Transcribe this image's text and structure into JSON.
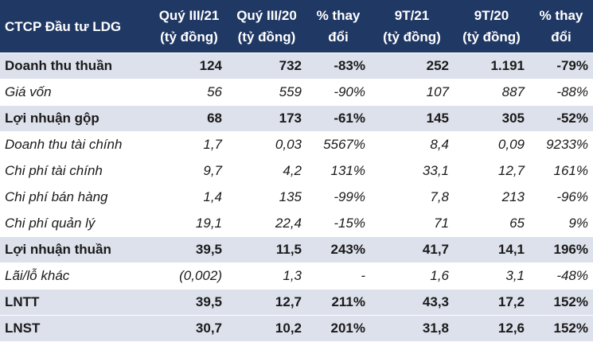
{
  "header": [
    [
      "CTCP Đầu tư LDG"
    ],
    [
      "Quý III/21",
      "(tỷ đồng)"
    ],
    [
      "Quý III/20",
      "(tỷ đồng)"
    ],
    [
      "% thay",
      "đổi"
    ],
    [
      "9T/21",
      "(tỷ đồng)"
    ],
    [
      "9T/20",
      "(tỷ đồng)"
    ],
    [
      "% thay",
      "đổi"
    ]
  ],
  "rows": [
    {
      "bold": true,
      "cells": [
        "Doanh thu thuần",
        "124",
        "732",
        "-83%",
        "252",
        "1.191",
        "-79%"
      ]
    },
    {
      "bold": false,
      "cells": [
        "Giá vốn",
        "56",
        "559",
        "-90%",
        "107",
        "887",
        "-88%"
      ]
    },
    {
      "bold": true,
      "cells": [
        "Lợi nhuận gộp",
        "68",
        "173",
        "-61%",
        "145",
        "305",
        "-52%"
      ]
    },
    {
      "bold": false,
      "cells": [
        "Doanh thu tài chính",
        "1,7",
        "0,03",
        "5567%",
        "8,4",
        "0,09",
        "9233%"
      ]
    },
    {
      "bold": false,
      "cells": [
        "Chi phí tài chính",
        "9,7",
        "4,2",
        "131%",
        "33,1",
        "12,7",
        "161%"
      ]
    },
    {
      "bold": false,
      "cells": [
        "Chi phí bán hàng",
        "1,4",
        "135",
        "-99%",
        "7,8",
        "213",
        "-96%"
      ]
    },
    {
      "bold": false,
      "cells": [
        "Chi phí quản lý",
        "19,1",
        "22,4",
        "-15%",
        "71",
        "65",
        "9%"
      ]
    },
    {
      "bold": true,
      "cells": [
        "Lợi nhuận thuần",
        "39,5",
        "11,5",
        "243%",
        "41,7",
        "14,1",
        "196%"
      ]
    },
    {
      "bold": false,
      "cells": [
        "Lãi/lỗ khác",
        "(0,002)",
        "1,3",
        "-",
        "1,6",
        "3,1",
        "-48%"
      ]
    },
    {
      "bold": true,
      "cells": [
        "LNTT",
        "39,5",
        "12,7",
        "211%",
        "43,3",
        "17,2",
        "152%"
      ]
    },
    {
      "bold": true,
      "cells": [
        "LNST",
        "30,7",
        "10,2",
        "201%",
        "31,8",
        "12,6",
        "152%"
      ]
    }
  ]
}
